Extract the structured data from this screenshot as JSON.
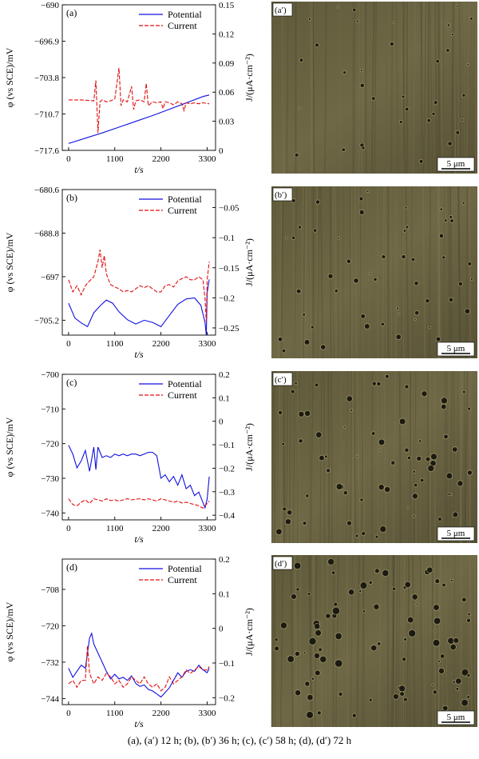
{
  "caption": "(a), (a′) 12 h; (b), (b′) 36 h; (c), (c′) 58 h; (d), (d′) 72 h",
  "colors": {
    "potential": "#1010e0",
    "current": "#e01010"
  },
  "chart_data": [
    {
      "type": "line",
      "panel_label": "(a)",
      "xlabel": "t/s",
      "ylabel_left": "φ (vs SCE)/mV",
      "ylabel_right": "J/(μA·cm⁻²)",
      "xlim": [
        -150,
        3500
      ],
      "xticks": [
        0,
        1100,
        2200,
        3300
      ],
      "ylim_left": [
        -717.6,
        -690.0
      ],
      "yticks_left": [
        -717.6,
        -710.7,
        -703.8,
        -696.9,
        -690.0
      ],
      "ylim_right": [
        0,
        0.15
      ],
      "yticks_right": [
        0,
        0.03,
        0.06,
        0.09,
        0.12,
        0.15
      ],
      "series": [
        {
          "name": "Potential",
          "axis": "left",
          "style": "solid",
          "x": [
            0,
            400,
            800,
            1200,
            1600,
            2000,
            2400,
            2800,
            3200,
            3350
          ],
          "y": [
            -716.3,
            -715.3,
            -714.3,
            -713.2,
            -712.1,
            -711.0,
            -709.8,
            -708.6,
            -707.4,
            -707.1
          ]
        },
        {
          "name": "Current",
          "axis": "right",
          "style": "dashed",
          "x": [
            0,
            300,
            600,
            650,
            700,
            750,
            800,
            900,
            1000,
            1100,
            1200,
            1250,
            1300,
            1400,
            1500,
            1550,
            1600,
            1700,
            1800,
            1850,
            1900,
            2000,
            2100,
            2200,
            2250,
            2300,
            2400,
            2500,
            2600,
            2700,
            2750,
            2800,
            2900,
            3000,
            3100,
            3200,
            3350
          ],
          "y": [
            0.052,
            0.052,
            0.051,
            0.072,
            0.018,
            0.05,
            0.052,
            0.05,
            0.051,
            0.053,
            0.085,
            0.046,
            0.052,
            0.05,
            0.066,
            0.042,
            0.051,
            0.052,
            0.05,
            0.069,
            0.046,
            0.05,
            0.049,
            0.05,
            0.043,
            0.05,
            0.049,
            0.047,
            0.05,
            0.048,
            0.041,
            0.049,
            0.048,
            0.049,
            0.048,
            0.049,
            0.048
          ]
        }
      ]
    },
    {
      "type": "line",
      "panel_label": "(b)",
      "xlabel": "t/s",
      "ylabel_left": "φ (vs SCE)/mV",
      "ylabel_right": "J/(μA·cm⁻²)",
      "xlim": [
        -150,
        3500
      ],
      "xticks": [
        0,
        1100,
        2200,
        3300
      ],
      "ylim_left": [
        -708,
        -680.6
      ],
      "yticks_left": [
        -705.2,
        -697.0,
        -688.8,
        -680.6
      ],
      "ylim_right": [
        -0.262,
        -0.02
      ],
      "yticks_right": [
        -0.25,
        -0.2,
        -0.15,
        -0.1,
        -0.05
      ],
      "series": [
        {
          "name": "Potential",
          "axis": "left",
          "style": "solid",
          "x": [
            0,
            150,
            300,
            450,
            600,
            750,
            900,
            1050,
            1200,
            1400,
            1600,
            1800,
            2000,
            2200,
            2400,
            2600,
            2800,
            3000,
            3150,
            3250,
            3280,
            3300,
            3350
          ],
          "y": [
            -702.0,
            -704.8,
            -705.7,
            -706.4,
            -703.8,
            -702.5,
            -701.4,
            -702.0,
            -703.6,
            -705.1,
            -705.9,
            -705.2,
            -705.6,
            -706.4,
            -704.3,
            -702.2,
            -701.2,
            -701.0,
            -702.4,
            -705.6,
            -708.0,
            -700.0,
            -697.5
          ]
        },
        {
          "name": "Current",
          "axis": "right",
          "style": "dashed",
          "x": [
            0,
            100,
            200,
            300,
            400,
            500,
            600,
            700,
            750,
            800,
            850,
            900,
            950,
            1000,
            1100,
            1200,
            1300,
            1400,
            1500,
            1600,
            1700,
            1800,
            1900,
            2000,
            2100,
            2200,
            2300,
            2400,
            2500,
            2600,
            2700,
            2800,
            2900,
            3000,
            3100,
            3200,
            3250,
            3280,
            3300,
            3350
          ],
          "y": [
            -0.17,
            -0.19,
            -0.18,
            -0.195,
            -0.18,
            -0.172,
            -0.165,
            -0.14,
            -0.12,
            -0.15,
            -0.13,
            -0.16,
            -0.17,
            -0.178,
            -0.182,
            -0.185,
            -0.19,
            -0.188,
            -0.19,
            -0.185,
            -0.18,
            -0.183,
            -0.18,
            -0.185,
            -0.19,
            -0.19,
            -0.18,
            -0.178,
            -0.182,
            -0.172,
            -0.168,
            -0.165,
            -0.17,
            -0.17,
            -0.165,
            -0.17,
            -0.2,
            -0.24,
            -0.17,
            -0.14
          ]
        }
      ]
    },
    {
      "type": "line",
      "panel_label": "(c)",
      "xlabel": "t/s",
      "ylabel_left": "φ (vs SCE)/mV",
      "ylabel_right": "J/(μA·cm⁻²)",
      "xlim": [
        -150,
        3500
      ],
      "xticks": [
        0,
        1100,
        2200,
        3300
      ],
      "ylim_left": [
        -742,
        -700
      ],
      "yticks_left": [
        -740,
        -730,
        -720,
        -710,
        -700
      ],
      "ylim_right": [
        -0.42,
        0.2
      ],
      "yticks_right": [
        -0.4,
        -0.3,
        -0.2,
        -0.1,
        0,
        0.1,
        0.2
      ],
      "series": [
        {
          "name": "Potential",
          "axis": "left",
          "style": "solid",
          "x": [
            0,
            100,
            200,
            300,
            400,
            500,
            600,
            650,
            700,
            800,
            900,
            1000,
            1100,
            1200,
            1300,
            1400,
            1500,
            1600,
            1700,
            1800,
            1900,
            2000,
            2100,
            2200,
            2300,
            2400,
            2500,
            2600,
            2700,
            2800,
            2900,
            3000,
            3100,
            3200,
            3250,
            3300,
            3350
          ],
          "y": [
            -720.5,
            -723.0,
            -727.0,
            -725.0,
            -722.0,
            -728.0,
            -721.0,
            -727.5,
            -721.0,
            -724.0,
            -723.5,
            -724.0,
            -723.0,
            -723.5,
            -723.0,
            -723.5,
            -723.0,
            -723.0,
            -723.5,
            -723.0,
            -722.5,
            -722.5,
            -723.5,
            -730.0,
            -729.0,
            -731.0,
            -729.5,
            -732.0,
            -729.0,
            -733.0,
            -732.0,
            -735.0,
            -734.0,
            -737.0,
            -738.5,
            -736.0,
            -729.5
          ]
        },
        {
          "name": "Current",
          "axis": "right",
          "style": "dashed",
          "x": [
            0,
            100,
            200,
            300,
            400,
            500,
            600,
            700,
            800,
            900,
            1000,
            1100,
            1200,
            1300,
            1400,
            1500,
            1600,
            1700,
            1800,
            1900,
            2000,
            2100,
            2200,
            2300,
            2400,
            2500,
            2600,
            2700,
            2800,
            2900,
            3000,
            3100,
            3200,
            3300,
            3350
          ],
          "y": [
            -0.33,
            -0.355,
            -0.36,
            -0.345,
            -0.335,
            -0.35,
            -0.33,
            -0.335,
            -0.34,
            -0.33,
            -0.338,
            -0.335,
            -0.34,
            -0.335,
            -0.33,
            -0.335,
            -0.332,
            -0.33,
            -0.335,
            -0.33,
            -0.335,
            -0.34,
            -0.33,
            -0.335,
            -0.34,
            -0.345,
            -0.34,
            -0.348,
            -0.345,
            -0.35,
            -0.355,
            -0.36,
            -0.37,
            -0.35,
            -0.34
          ]
        }
      ]
    },
    {
      "type": "line",
      "panel_label": "(d)",
      "xlabel": "t/s",
      "ylabel_left": "φ (vs SCE)/mV",
      "ylabel_right": "J/(μA·cm⁻²)",
      "xlim": [
        -150,
        3500
      ],
      "xticks": [
        0,
        1100,
        2200,
        3300
      ],
      "ylim_left": [
        -746,
        -698
      ],
      "yticks_left": [
        -744,
        -732,
        -720,
        -708
      ],
      "ylim_right": [
        -0.22,
        0.2
      ],
      "yticks_right": [
        -0.2,
        -0.1,
        0,
        0.1,
        0.2
      ],
      "series": [
        {
          "name": "Potential",
          "axis": "left",
          "style": "solid",
          "x": [
            0,
            100,
            200,
            300,
            400,
            450,
            500,
            550,
            600,
            700,
            800,
            900,
            1000,
            1100,
            1200,
            1300,
            1400,
            1500,
            1600,
            1700,
            1800,
            1900,
            2000,
            2100,
            2200,
            2300,
            2400,
            2500,
            2600,
            2700,
            2800,
            2900,
            3000,
            3100,
            3200,
            3300,
            3350
          ],
          "y": [
            -734.0,
            -737.0,
            -735.0,
            -733.0,
            -734.0,
            -729.0,
            -724.0,
            -722.5,
            -726.0,
            -729.0,
            -732.0,
            -735.0,
            -737.5,
            -736.0,
            -737.5,
            -737.0,
            -738.0,
            -736.5,
            -739.0,
            -740.0,
            -739.5,
            -741.0,
            -741.5,
            -742.5,
            -743.5,
            -742.0,
            -740.5,
            -738.0,
            -735.5,
            -737.0,
            -735.0,
            -734.5,
            -735.0,
            -733.0,
            -734.5,
            -735.5,
            -734.0
          ]
        },
        {
          "name": "Current",
          "axis": "right",
          "style": "dashed",
          "x": [
            0,
            100,
            200,
            300,
            400,
            450,
            500,
            600,
            700,
            800,
            900,
            1000,
            1100,
            1200,
            1300,
            1400,
            1500,
            1600,
            1700,
            1800,
            1900,
            2000,
            2100,
            2200,
            2300,
            2400,
            2500,
            2600,
            2700,
            2800,
            2900,
            3000,
            3100,
            3200,
            3300,
            3350
          ],
          "y": [
            -0.16,
            -0.15,
            -0.17,
            -0.15,
            -0.15,
            -0.05,
            -0.13,
            -0.16,
            -0.14,
            -0.15,
            -0.13,
            -0.14,
            -0.16,
            -0.15,
            -0.17,
            -0.16,
            -0.14,
            -0.15,
            -0.16,
            -0.14,
            -0.16,
            -0.17,
            -0.16,
            -0.18,
            -0.17,
            -0.14,
            -0.16,
            -0.15,
            -0.14,
            -0.12,
            -0.13,
            -0.12,
            -0.11,
            -0.12,
            -0.12,
            -0.11
          ]
        }
      ]
    }
  ],
  "micrographs": [
    {
      "label": "(a′)",
      "scale": "5 μm"
    },
    {
      "label": "(b′)",
      "scale": "5 μm"
    },
    {
      "label": "(c′)",
      "scale": "5 μm"
    },
    {
      "label": "(d′)",
      "scale": "5 μm"
    }
  ]
}
